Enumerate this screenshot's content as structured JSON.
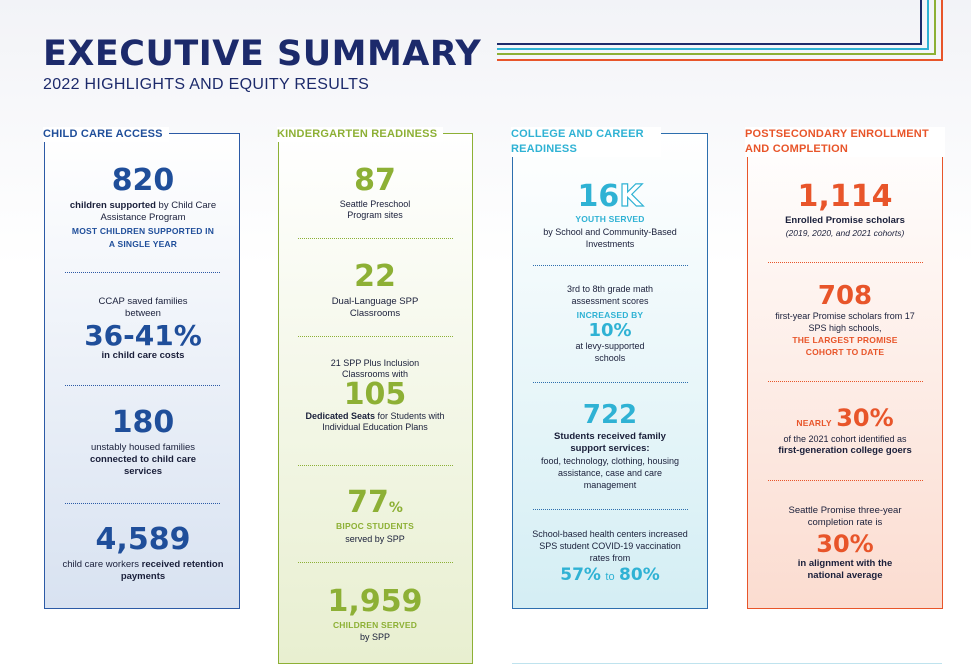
{
  "header": {
    "title": "EXECUTIVE SUMMARY",
    "subtitle": "2022 HIGHLIGHTS AND EQUITY RESULTS"
  },
  "colors": {
    "navy": "#1c2a6b",
    "child_care_blue": "#1f4e9a",
    "kindergarten_green": "#8db035",
    "college_teal": "#2fb2d4",
    "postsecondary_orange": "#e8552a"
  },
  "child_care": {
    "heading": "CHILD CARE ACCESS",
    "s1": {
      "number": "820",
      "text_bold": "children supported",
      "text_rest": " by Child Care Assistance Program",
      "cap": "MOST CHILDREN SUPPORTED IN A SINGLE YEAR"
    },
    "s2": {
      "pre": "CCAP saved families between",
      "number": "36-41%",
      "post": "in child care costs"
    },
    "s3": {
      "number": "180",
      "pre": "unstably housed families ",
      "bold": "connected to child care services"
    },
    "s4": {
      "number": "4,589",
      "pre": "child care workers ",
      "bold": "received retention payments"
    }
  },
  "kindergarten": {
    "heading": "KINDERGARTEN READINESS",
    "s1": {
      "number": "87",
      "text": "Seattle Preschool Program sites"
    },
    "s2": {
      "number": "22",
      "text": "Dual-Language SPP Classrooms"
    },
    "s3": {
      "pre": "21 SPP Plus Inclusion Classrooms with",
      "number": "105",
      "bold": "Dedicated Seats",
      "post": " for Students with Individual Education Plans"
    },
    "s4": {
      "number": "77",
      "suffix": "%",
      "cap": "BIPOC STUDENTS",
      "text": "served by SPP"
    },
    "s5": {
      "number": "1,959",
      "cap": "CHILDREN SERVED",
      "text": "by SPP"
    }
  },
  "college": {
    "heading": "COLLEGE AND CAREER READINESS",
    "s1": {
      "number": "16",
      "suffix": "K",
      "cap": "YOUTH SERVED",
      "text": "by School and Community-Based Investments"
    },
    "s2": {
      "pre": "3rd to 8th grade math assessment scores",
      "cap": "INCREASED BY",
      "number": "10%",
      "post": "at levy-supported schools"
    },
    "s3": {
      "number": "722",
      "bold": "Students received family support services:",
      "text": "food, technology, clothing, housing assistance, case and care management"
    },
    "s4": {
      "pre": "School-based health centers increased SPS student COVID-19 vaccination rates from",
      "from": "57%",
      "to_word": "to",
      "to": "80%"
    }
  },
  "postsecondary": {
    "heading": "POSTSECONDARY ENROLLMENT AND COMPLETION",
    "s1": {
      "number": "1,114",
      "bold": "Enrolled Promise scholars",
      "italic": "(2019, 2020, and 2021 cohorts)"
    },
    "s2": {
      "number": "708",
      "text": "first-year Promise scholars from 17 SPS high schools,",
      "cap": "THE LARGEST PROMISE COHORT TO DATE"
    },
    "s3": {
      "nearly": "NEARLY",
      "number": "30%",
      "text": "of the 2021 cohort identified as",
      "bold": "first-generation college goers"
    },
    "s4": {
      "pre": "Seattle Promise three-year completion rate is",
      "number": "30%",
      "bold": "in alignment with the national average"
    }
  }
}
